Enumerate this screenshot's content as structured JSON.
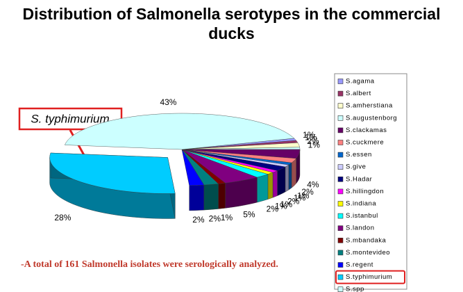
{
  "chart_data": {
    "type": "pie",
    "title": "Distribution of Salmonella serotypes in the commercial ducks",
    "annotation": "S. typhimurium",
    "note": "-A total of 161 Salmonella isolates were serologically analyzed.",
    "categories": [
      "S.agama",
      "S.albert",
      "S.amherstiana",
      "S.augustenborg",
      "S.clackamas",
      "S.cuckmere",
      "S.essen",
      "S.give",
      "S.Hadar",
      "S.hillingdon",
      "S.indiana",
      "S.istanbul",
      "S.landon",
      "S.mbandaka",
      "S.montevideo",
      "S.regent",
      "S.typhimurium",
      "S.spp"
    ],
    "values": [
      1,
      1,
      2,
      1,
      4,
      2,
      1,
      1,
      2,
      1,
      1,
      2,
      5,
      1,
      2,
      2,
      28,
      43
    ],
    "value_labels": [
      "1%",
      "1%",
      "2%",
      "1%",
      "4%",
      "2%",
      "1%",
      "1%",
      "2%",
      "1%",
      "1%",
      "2%",
      "5%",
      "1%",
      "2%",
      "2%",
      "28%",
      "43%"
    ],
    "colors": [
      "#9999ff",
      "#993366",
      "#ffffcc",
      "#ccffff",
      "#660066",
      "#ff8080",
      "#0066cc",
      "#ccccff",
      "#000080",
      "#ff00ff",
      "#ffff00",
      "#00ffff",
      "#800080",
      "#800000",
      "#008080",
      "#0000ff",
      "#00ccff",
      "#ccffff"
    ],
    "exploded": "S.typhimurium",
    "legend": "right"
  }
}
